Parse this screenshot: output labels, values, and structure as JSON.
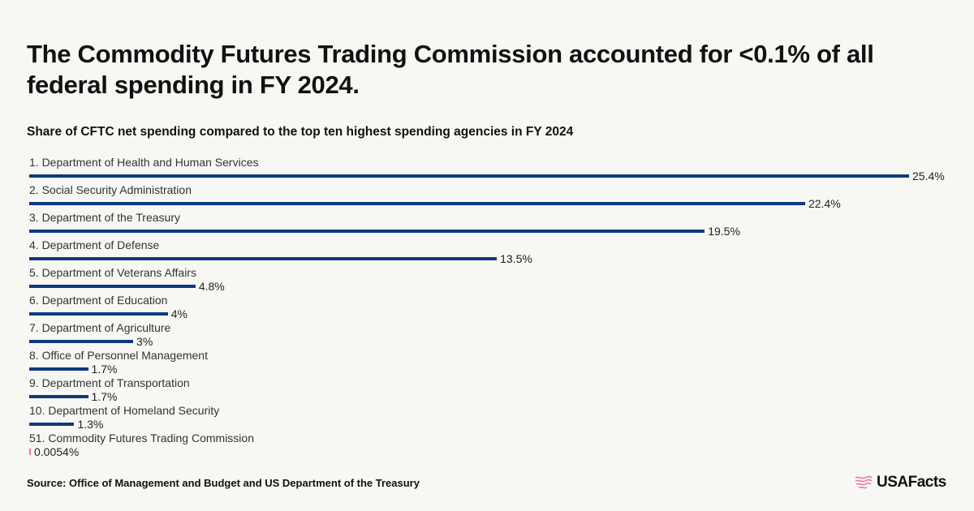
{
  "title": "The Commodity Futures Trading Commission accounted for <0.1% of all federal spending in FY 2024.",
  "subtitle": "Share of CFTC net spending compared to the top ten highest spending agencies in FY 2024",
  "source": "Source: Office of Management and Budget and US Department of the Treasury",
  "logo": "USAFacts",
  "colors": {
    "bar": "#0e3a7f",
    "highlight": "#f06ea9",
    "background": "#f7f7f3"
  },
  "chart_data": {
    "type": "bar",
    "orientation": "horizontal",
    "categories": [
      "1. Department of Health and Human Services",
      "2. Social Security Administration",
      "3. Department of the Treasury",
      "4. Department of Defense",
      "5. Department of Veterans Affairs",
      "6. Department of Education",
      "7. Department of Agriculture",
      "8. Office of Personnel Management",
      "9. Department of Transportation",
      "10. Department of Homeland Security",
      "51. Commodity Futures Trading Commission"
    ],
    "values": [
      25.4,
      22.4,
      19.5,
      13.5,
      4.8,
      4,
      3,
      1.7,
      1.7,
      1.3,
      0.0054
    ],
    "value_labels": [
      "25.4%",
      "22.4%",
      "19.5%",
      "13.5%",
      "4.8%",
      "4%",
      "3%",
      "1.7%",
      "1.7%",
      "1.3%",
      "0.0054%"
    ],
    "unit": "%",
    "xlim": [
      0,
      25.4
    ],
    "grid": false
  }
}
